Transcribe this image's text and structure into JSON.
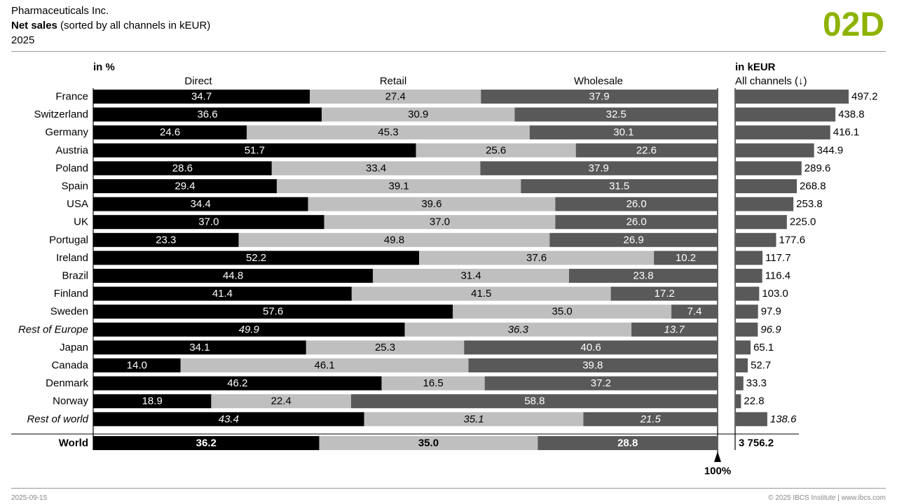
{
  "header": {
    "company": "Pharmaceuticals Inc.",
    "measure": "Net sales",
    "measure_detail": "(sorted by all channels in kEUR)",
    "period": "2025",
    "page_code": "02D"
  },
  "footer": {
    "date": "2025-09-15",
    "copyright": "© 2025 IBCS Institute | www.ibcs.com"
  },
  "colors": {
    "accent": "#8db300",
    "direct": "#000000",
    "retail": "#bfbfbf",
    "wholesale": "#595959",
    "total_bar": "#595959"
  },
  "chart_data": [
    {
      "type": "bar",
      "stacked": true,
      "normalized_percent": true,
      "unit_label": "in %",
      "categories": [
        "France",
        "Switzerland",
        "Germany",
        "Austria",
        "Poland",
        "Spain",
        "USA",
        "UK",
        "Portugal",
        "Ireland",
        "Brazil",
        "Finland",
        "Sweden",
        "Rest of Europe",
        "Japan",
        "Canada",
        "Denmark",
        "Norway",
        "Rest of world"
      ],
      "italic_categories": [
        "Rest of Europe",
        "Rest of world"
      ],
      "series": [
        {
          "name": "Direct",
          "values": [
            34.7,
            36.6,
            24.6,
            51.7,
            28.6,
            29.4,
            34.4,
            37.0,
            23.3,
            52.2,
            44.8,
            41.4,
            57.6,
            49.9,
            34.1,
            14.0,
            46.2,
            18.9,
            43.4
          ]
        },
        {
          "name": "Retail",
          "values": [
            27.4,
            30.9,
            45.3,
            25.6,
            33.4,
            39.1,
            39.6,
            37.0,
            49.8,
            37.6,
            31.4,
            41.5,
            35.0,
            36.3,
            25.3,
            46.1,
            16.5,
            22.4,
            35.1
          ]
        },
        {
          "name": "Wholesale",
          "values": [
            37.9,
            32.5,
            30.1,
            22.6,
            37.9,
            31.5,
            26.0,
            26.0,
            26.9,
            10.2,
            23.8,
            17.2,
            7.4,
            13.7,
            40.6,
            39.8,
            37.2,
            58.8,
            21.5
          ]
        }
      ],
      "total": {
        "label": "World",
        "values": [
          36.2,
          35.0,
          28.8
        ]
      },
      "end_marker": "100%",
      "xlim": [
        0,
        100
      ]
    },
    {
      "type": "bar",
      "orientation": "horizontal",
      "unit_label": "in kEUR",
      "series_label": "All channels (↓)",
      "categories": [
        "France",
        "Switzerland",
        "Germany",
        "Austria",
        "Poland",
        "Spain",
        "USA",
        "UK",
        "Portugal",
        "Ireland",
        "Brazil",
        "Finland",
        "Sweden",
        "Rest of Europe",
        "Japan",
        "Canada",
        "Denmark",
        "Norway",
        "Rest of world"
      ],
      "values": [
        497.2,
        438.8,
        416.1,
        344.9,
        289.6,
        268.8,
        253.8,
        225.0,
        177.6,
        117.7,
        116.4,
        103.0,
        97.9,
        96.9,
        65.1,
        52.7,
        33.3,
        22.8,
        138.6
      ],
      "value_labels": [
        "497.2",
        "438.8",
        "416.1",
        "344.9",
        "289.6",
        "268.8",
        "253.8",
        "225.0",
        "177.6",
        "117.7",
        "116.4",
        "103.0",
        "97.9",
        "96.9",
        "65.1",
        "52.7",
        "33.3",
        "22.8",
        "138.6"
      ],
      "total": {
        "label": "World",
        "value": 3756.2,
        "value_label": "3 756.2"
      }
    }
  ]
}
